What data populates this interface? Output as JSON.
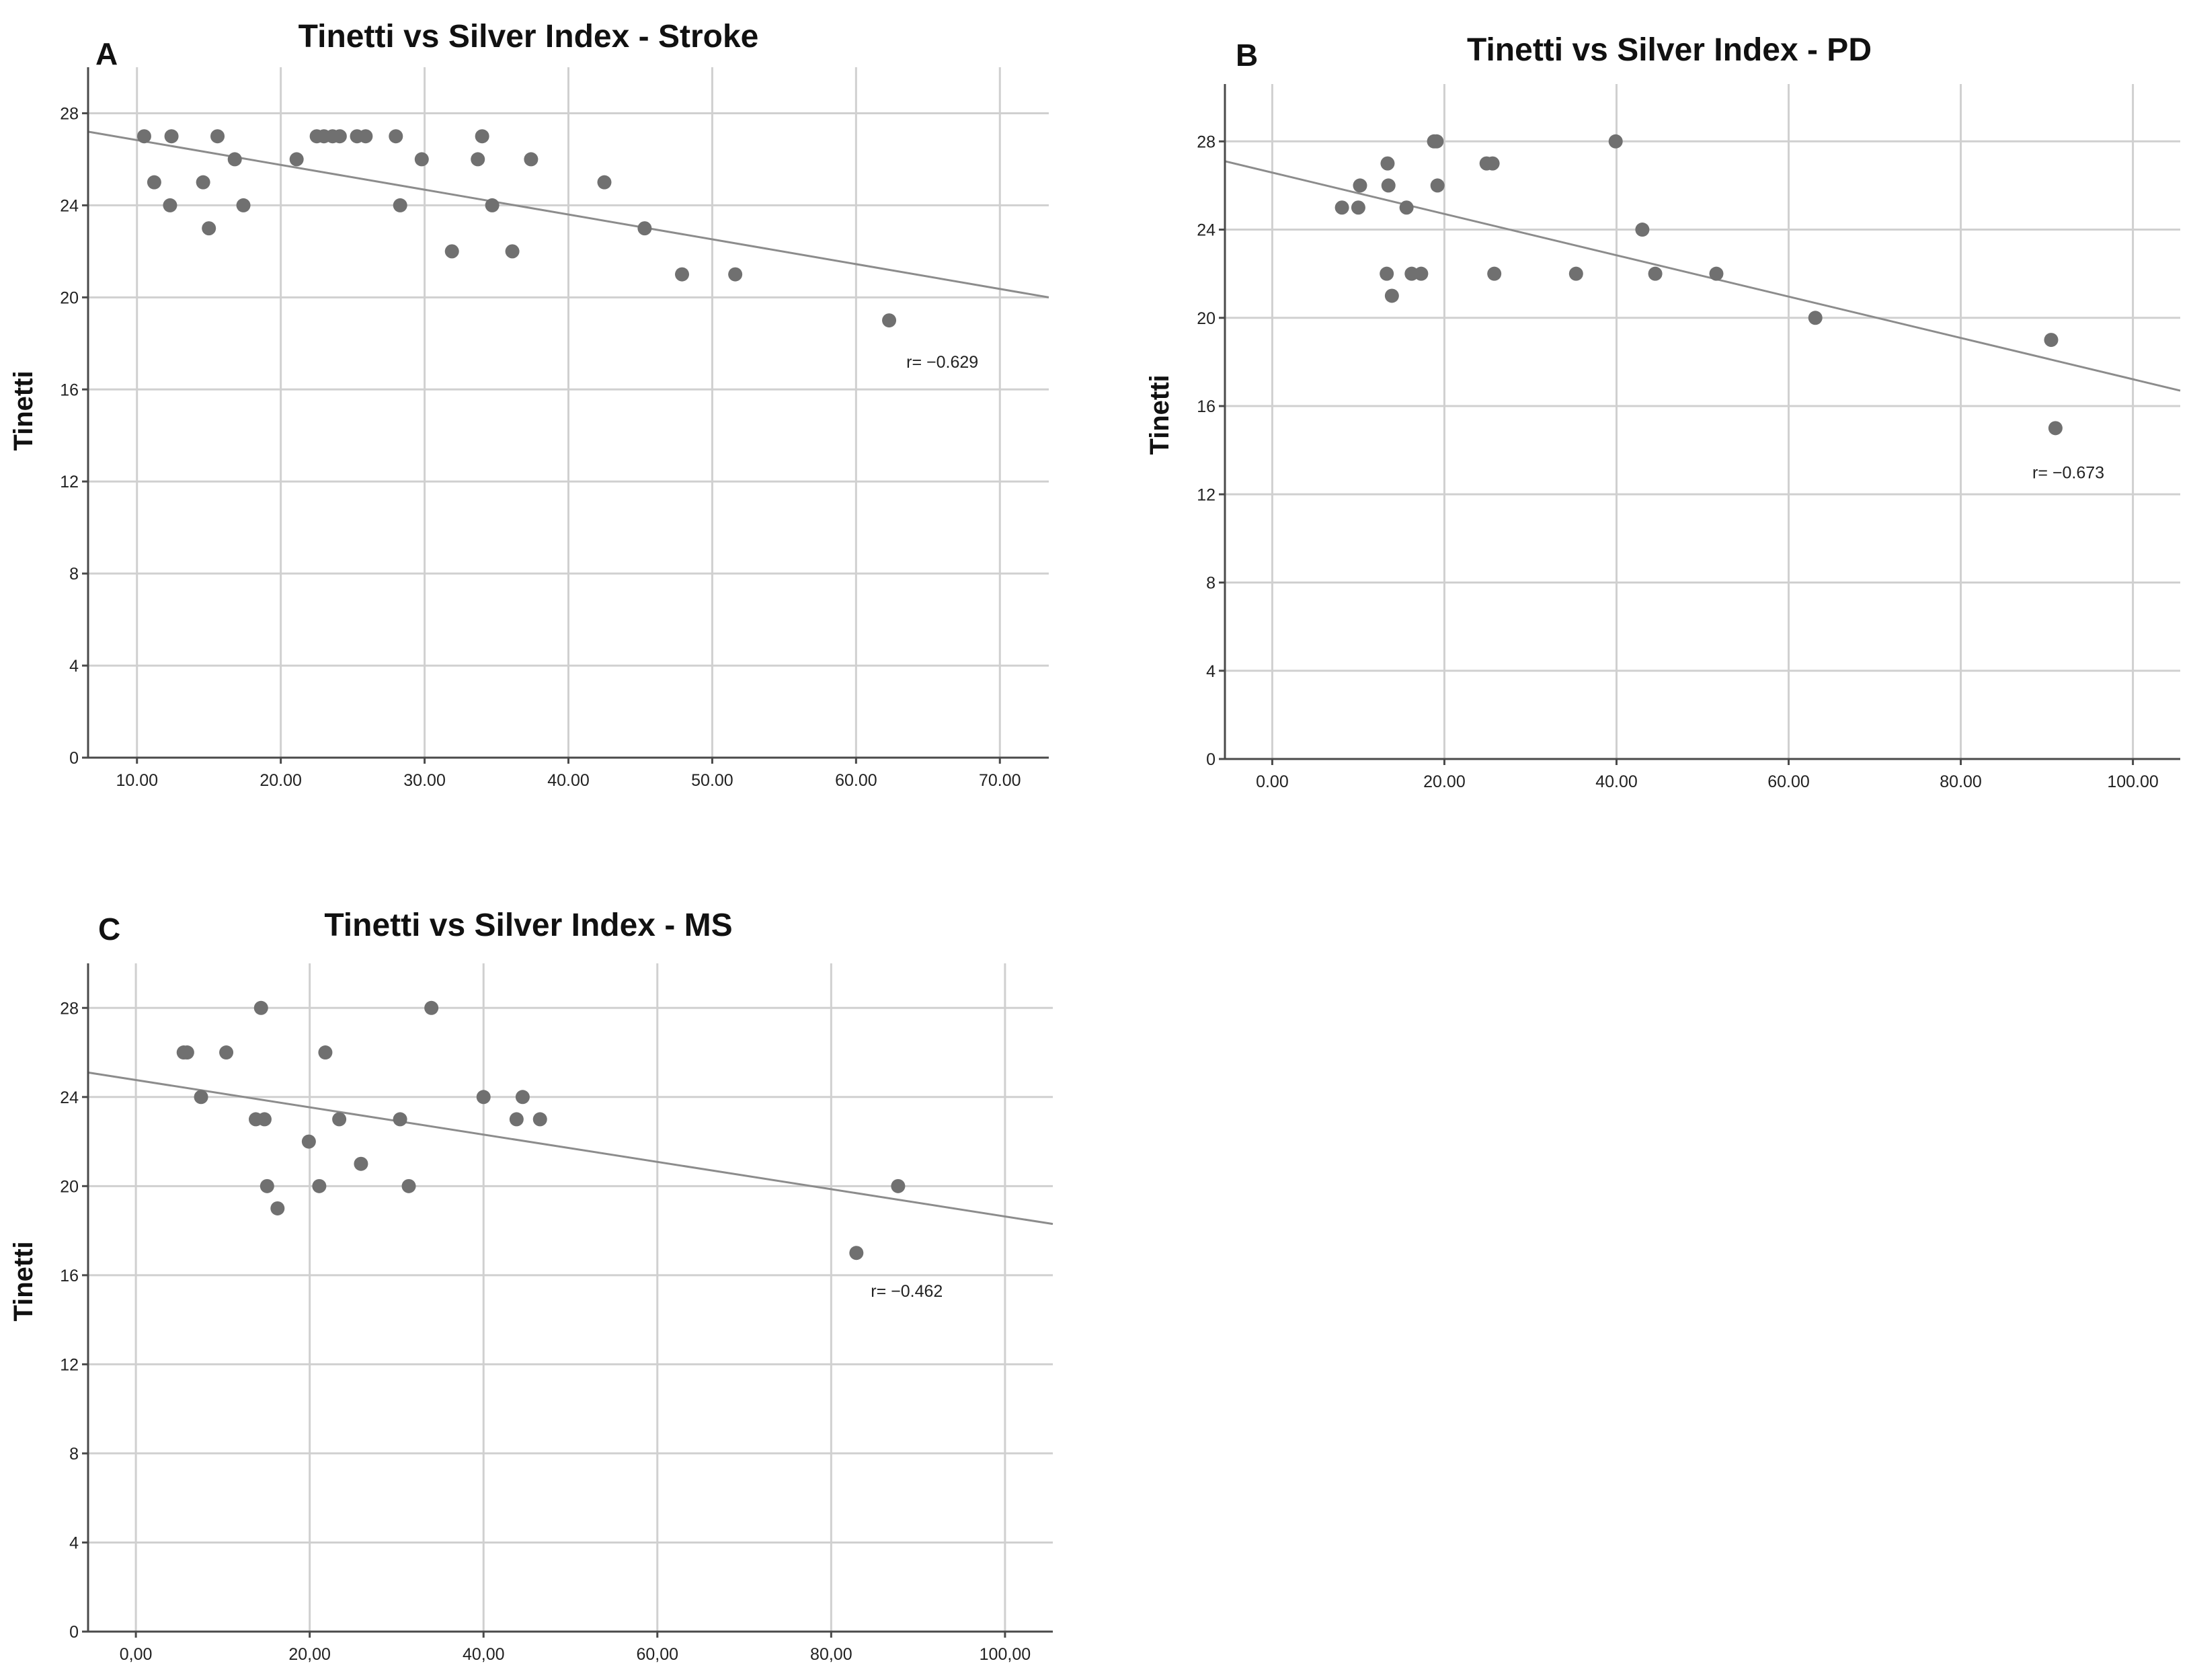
{
  "colors": {
    "point": "#707070",
    "fit_line": "#8c8c8c",
    "grid": "#d0d0d0",
    "axis": "#4a4a4a"
  },
  "chart_data": [
    {
      "type": "scatter",
      "panel": "A",
      "title": "Tinetti vs Silver Index - Stroke",
      "xlabel": "",
      "ylabel": "Tinetti",
      "xlim": [
        6.6,
        73.4
      ],
      "ylim": [
        0,
        30
      ],
      "xticks": [
        10,
        20,
        30,
        40,
        50,
        60,
        70
      ],
      "xtick_labels": [
        "10.00",
        "20.00",
        "30.00",
        "40.00",
        "50.00",
        "60.00",
        "70.00"
      ],
      "yticks": [
        0,
        4,
        8,
        12,
        16,
        20,
        24,
        28
      ],
      "ytick_labels": [
        "0",
        "4",
        "8",
        "12",
        "16",
        "20",
        "24",
        "28"
      ],
      "grid": true,
      "legend": "none",
      "annotation": {
        "text": "r= −0.629",
        "x": 66,
        "y": 17.2
      },
      "fit_line": {
        "x": [
          6.6,
          73.4
        ],
        "y": [
          27.2,
          20.0
        ]
      },
      "points": {
        "x": [
          10.5,
          11.2,
          12.3,
          12.4,
          14.6,
          15.0,
          15.6,
          16.8,
          17.4,
          21.1,
          22.5,
          23.0,
          23.6,
          24.1,
          25.3,
          25.9,
          28.0,
          28.3,
          29.8,
          31.9,
          33.7,
          34.0,
          34.7,
          36.1,
          37.4,
          42.5,
          45.3,
          47.9,
          51.6,
          62.3
        ],
        "y": [
          27,
          25,
          24,
          27,
          25,
          23,
          27,
          26,
          24,
          26,
          27,
          27,
          27,
          27,
          27,
          27,
          27,
          24,
          26,
          22,
          26,
          27,
          24,
          22,
          26,
          25,
          23,
          21,
          21,
          19
        ]
      }
    },
    {
      "type": "scatter",
      "panel": "B",
      "title": "Tinetti vs Silver Index - PD",
      "xlabel": "",
      "ylabel": "Tinetti",
      "xlim": [
        -5.5,
        105.5
      ],
      "ylim": [
        0,
        30.6
      ],
      "xticks": [
        0,
        20,
        40,
        60,
        80,
        100
      ],
      "xtick_labels": [
        "0.00",
        "20.00",
        "40.00",
        "60.00",
        "80.00",
        "100.00"
      ],
      "yticks": [
        0,
        4,
        8,
        12,
        16,
        20,
        24,
        28
      ],
      "ytick_labels": [
        "0",
        "4",
        "8",
        "12",
        "16",
        "20",
        "24",
        "28"
      ],
      "grid": true,
      "legend": "none",
      "annotation": {
        "text": "r= −0.673",
        "x": 92.5,
        "y": 13.0
      },
      "fit_line": {
        "x": [
          -5.5,
          105.5
        ],
        "y": [
          27.1,
          16.7
        ]
      },
      "points": {
        "x": [
          8.1,
          10.0,
          10.2,
          13.3,
          13.4,
          13.5,
          13.9,
          15.6,
          16.2,
          17.3,
          18.8,
          19.1,
          19.2,
          24.9,
          25.6,
          25.8,
          35.3,
          39.9,
          43.0,
          44.5,
          51.6,
          63.1,
          90.5,
          91.0
        ],
        "y": [
          25,
          25,
          26,
          22,
          27,
          26,
          21,
          25,
          22,
          22,
          28,
          28,
          26,
          27,
          27,
          22,
          22,
          28,
          24,
          22,
          22,
          20,
          19,
          15
        ]
      }
    },
    {
      "type": "scatter",
      "panel": "C",
      "title": "Tinetti vs Silver Index - MS",
      "xlabel": "",
      "ylabel": "Tinetti",
      "xlim": [
        -5.5,
        105.5
      ],
      "ylim": [
        0,
        30
      ],
      "xticks": [
        0,
        20,
        40,
        60,
        80,
        100
      ],
      "xtick_labels": [
        "0,00",
        "20,00",
        "40,00",
        "60,00",
        "80,00",
        "100,00"
      ],
      "yticks": [
        0,
        4,
        8,
        12,
        16,
        20,
        24,
        28
      ],
      "ytick_labels": [
        "0",
        "4",
        "8",
        "12",
        "16",
        "20",
        "24",
        "28"
      ],
      "grid": true,
      "legend": "none",
      "annotation": {
        "text": "r= −0.462",
        "x": 88.7,
        "y": 15.3
      },
      "fit_line": {
        "x": [
          -5.5,
          105.5
        ],
        "y": [
          25.1,
          18.3
        ]
      },
      "points": {
        "x": [
          5.5,
          5.9,
          7.5,
          10.4,
          13.8,
          14.4,
          14.8,
          15.1,
          16.3,
          19.9,
          21.1,
          21.8,
          23.4,
          25.9,
          30.4,
          31.4,
          34.0,
          40.0,
          43.8,
          44.5,
          46.5,
          82.9,
          87.7
        ],
        "y": [
          26,
          26,
          24,
          26,
          23,
          28,
          23,
          20,
          19,
          22,
          20,
          26,
          23,
          21,
          23,
          20,
          28,
          24,
          23,
          24,
          23,
          17,
          20
        ]
      }
    }
  ]
}
